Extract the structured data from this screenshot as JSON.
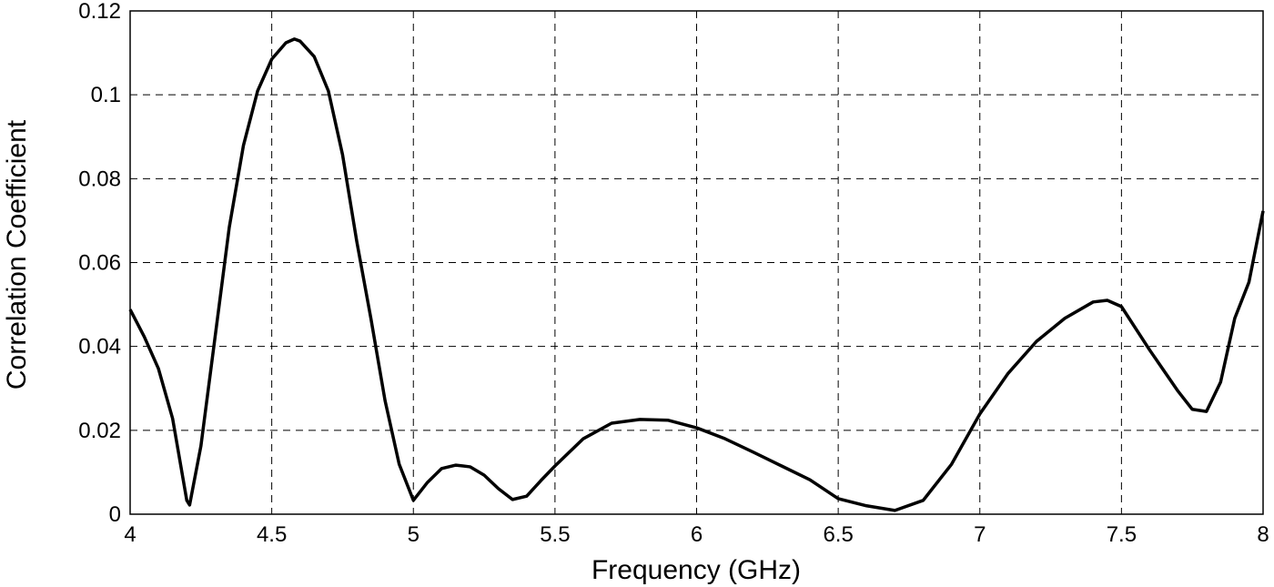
{
  "chart_data": {
    "type": "line",
    "xlabel": "Frequency (GHz)",
    "ylabel": "Correlation Coefficient",
    "x": [
      4.0,
      4.05,
      4.1,
      4.15,
      4.2,
      4.21,
      4.25,
      4.3,
      4.35,
      4.4,
      4.45,
      4.5,
      4.55,
      4.58,
      4.6,
      4.65,
      4.7,
      4.75,
      4.8,
      4.85,
      4.9,
      4.95,
      5.0,
      5.05,
      5.1,
      5.15,
      5.2,
      5.25,
      5.3,
      5.35,
      5.4,
      5.45,
      5.5,
      5.6,
      5.7,
      5.8,
      5.9,
      6.0,
      6.1,
      6.2,
      6.3,
      6.4,
      6.5,
      6.6,
      6.7,
      6.8,
      6.9,
      7.0,
      7.1,
      7.2,
      7.3,
      7.4,
      7.45,
      7.5,
      7.6,
      7.7,
      7.75,
      7.8,
      7.85,
      7.9,
      7.95,
      8.0
    ],
    "series": [
      {
        "color": "#000000",
        "values": [
          0.0488,
          0.0423,
          0.0347,
          0.0228,
          0.0033,
          0.0022,
          0.0163,
          0.0423,
          0.0684,
          0.0879,
          0.1009,
          0.1085,
          0.1124,
          0.1133,
          0.1128,
          0.1091,
          0.1009,
          0.0857,
          0.0651,
          0.0467,
          0.0271,
          0.0119,
          0.0033,
          0.0076,
          0.0109,
          0.0117,
          0.0113,
          0.0093,
          0.0061,
          0.0035,
          0.0043,
          0.008,
          0.0115,
          0.018,
          0.0217,
          0.0226,
          0.0224,
          0.0206,
          0.018,
          0.0148,
          0.0115,
          0.0082,
          0.0037,
          0.002,
          0.0009,
          0.0033,
          0.0119,
          0.0239,
          0.0336,
          0.0412,
          0.0467,
          0.0506,
          0.051,
          0.0495,
          0.0391,
          0.0293,
          0.025,
          0.0245,
          0.0315,
          0.0467,
          0.0553,
          0.0723
        ]
      }
    ],
    "xlim": [
      4,
      8
    ],
    "xticks": [
      4,
      4.5,
      5,
      5.5,
      6,
      6.5,
      7,
      7.5,
      8
    ],
    "ylim": [
      0,
      0.12
    ],
    "yticks": [
      0,
      0.02,
      0.04,
      0.06,
      0.08,
      0.1,
      0.12
    ],
    "grid": true
  }
}
